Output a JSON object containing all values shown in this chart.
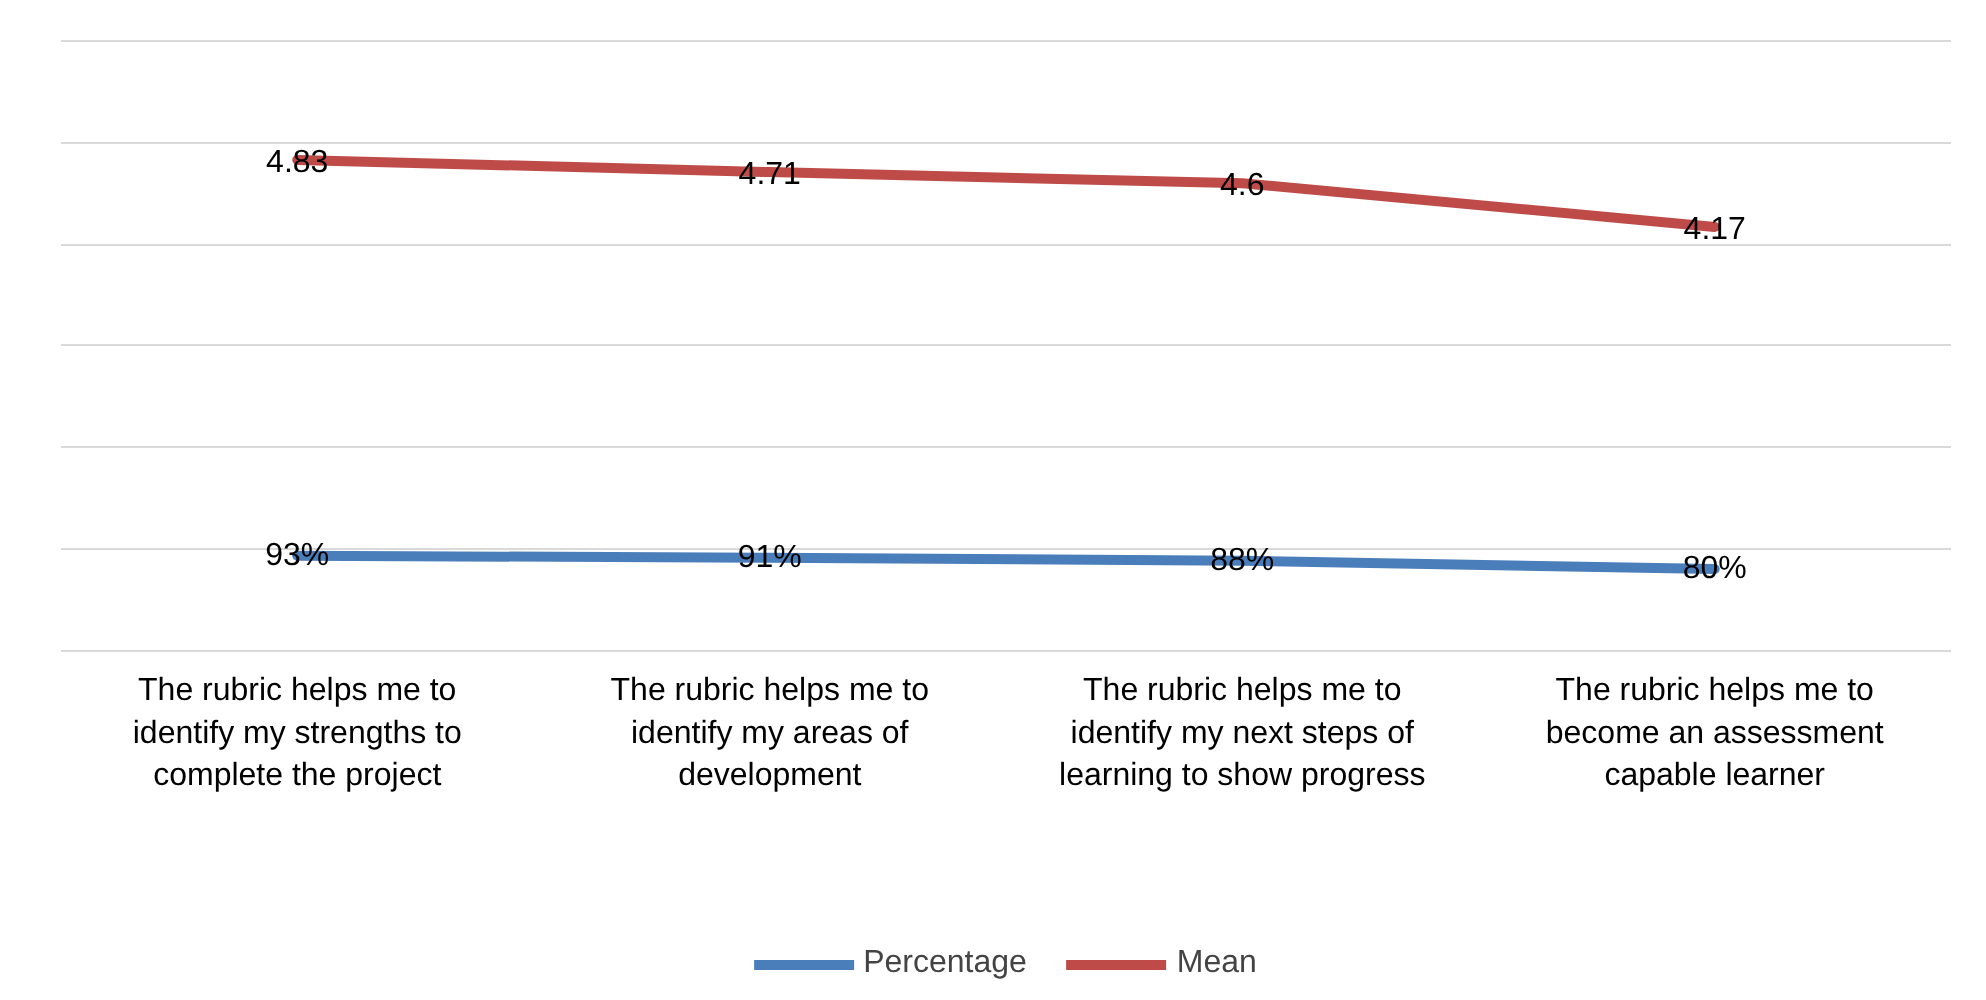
{
  "chart_data": {
    "type": "line",
    "categories": [
      "The rubric helps me to identify my strengths to complete the project",
      "The rubric helps me to identify my areas of development",
      "The rubric helps me to identify my next steps of learning to show progress",
      "The rubric helps me to become an assessment capable learner"
    ],
    "series": [
      {
        "name": "Percentage",
        "color": "#4a7ebb",
        "values": [
          0.93,
          0.91,
          0.88,
          0.8
        ],
        "value_labels": [
          "93%",
          "91%",
          "88%",
          "80%"
        ]
      },
      {
        "name": "Mean",
        "color": "#be4b48",
        "values": [
          4.83,
          4.71,
          4.6,
          4.17
        ],
        "value_labels": [
          "4.83",
          "4.71",
          "4.6",
          "4.17"
        ]
      }
    ],
    "yticks": [
      {
        "value": 0,
        "label": null
      },
      {
        "value": 1,
        "label": null
      },
      {
        "value": 2,
        "label": null
      },
      {
        "value": 3,
        "label": null
      },
      {
        "value": 4,
        "label": null
      },
      {
        "value": 5,
        "label": null
      },
      {
        "value": 6,
        "label": null
      }
    ],
    "tick_labels": "x",
    "grid": "y",
    "legend": "bottom",
    "marker": "none",
    "line_style": "solid"
  }
}
